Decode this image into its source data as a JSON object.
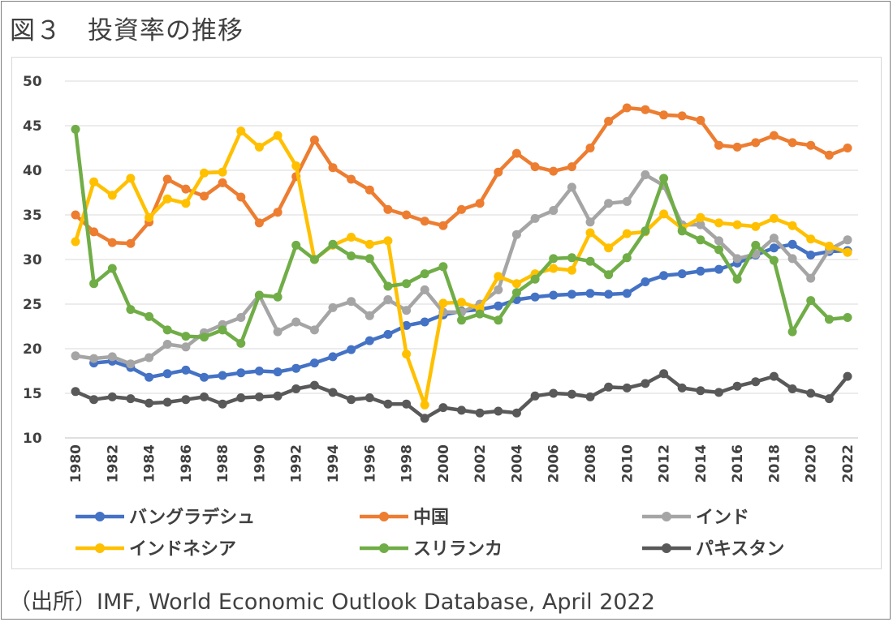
{
  "title": "図３　投資率の推移",
  "source": "（出所）IMF, World Economic Outlook Database, April 2022",
  "chart_data": {
    "type": "line",
    "ylim": [
      10,
      50
    ],
    "yticks": [
      "10",
      "15",
      "20",
      "25",
      "30",
      "35",
      "40",
      "45",
      "50"
    ],
    "x": [
      "1980",
      "1981",
      "1982",
      "1983",
      "1984",
      "1985",
      "1986",
      "1987",
      "1988",
      "1989",
      "1990",
      "1991",
      "1992",
      "1993",
      "1994",
      "1995",
      "1996",
      "1997",
      "1998",
      "1999",
      "2000",
      "2001",
      "2002",
      "2003",
      "2004",
      "2005",
      "2006",
      "2007",
      "2008",
      "2009",
      "2010",
      "2011",
      "2012",
      "2013",
      "2014",
      "2015",
      "2016",
      "2017",
      "2018",
      "2019",
      "2020",
      "2021",
      "2022"
    ],
    "xtick_labels": [
      "1980",
      "1982",
      "1984",
      "1986",
      "1988",
      "1990",
      "1992",
      "1994",
      "1996",
      "1998",
      "2000",
      "2002",
      "2004",
      "2006",
      "2008",
      "2010",
      "2012",
      "2014",
      "2016",
      "2018",
      "2020",
      "2022"
    ],
    "grid": true,
    "legend_position": "bottom",
    "series": [
      {
        "name": "バングラデシュ",
        "color": "#4472c4",
        "values": [
          null,
          18.4,
          18.6,
          17.9,
          16.8,
          17.2,
          17.6,
          16.8,
          17.0,
          17.3,
          17.5,
          17.4,
          17.8,
          18.4,
          19.1,
          19.9,
          20.9,
          21.6,
          22.6,
          23.0,
          23.8,
          24.2,
          24.4,
          24.8,
          25.5,
          25.8,
          26.0,
          26.1,
          26.2,
          26.1,
          26.2,
          27.5,
          28.2,
          28.4,
          28.7,
          28.9,
          29.6,
          30.5,
          31.3,
          31.7,
          30.5,
          30.9,
          31.0
        ]
      },
      {
        "name": "中国",
        "color": "#ed7d31",
        "values": [
          35.0,
          33.1,
          31.9,
          31.8,
          34.2,
          39.0,
          37.9,
          37.1,
          38.6,
          37.0,
          34.1,
          35.3,
          39.3,
          43.4,
          40.3,
          39.0,
          37.8,
          35.6,
          35.0,
          34.3,
          33.8,
          35.6,
          36.3,
          39.8,
          41.9,
          40.4,
          39.9,
          40.4,
          42.5,
          45.5,
          47.0,
          46.8,
          46.2,
          46.1,
          45.6,
          42.8,
          42.6,
          43.1,
          43.9,
          43.1,
          42.8,
          41.7,
          42.5
        ]
      },
      {
        "name": "インド",
        "color": "#a5a5a5",
        "values": [
          19.2,
          18.9,
          19.1,
          18.3,
          19.0,
          20.5,
          20.2,
          21.8,
          22.7,
          23.5,
          26.0,
          21.9,
          23.0,
          22.1,
          24.6,
          25.3,
          23.7,
          25.5,
          24.3,
          26.6,
          24.1,
          24.1,
          25.0,
          26.6,
          32.8,
          34.6,
          35.5,
          38.1,
          34.2,
          36.3,
          36.5,
          39.5,
          38.3,
          33.9,
          33.9,
          32.1,
          30.1,
          30.6,
          32.4,
          30.1,
          27.9,
          31.1,
          32.2
        ]
      },
      {
        "name": "インドネシア",
        "color": "#ffc000",
        "values": [
          32.0,
          38.7,
          37.2,
          39.1,
          34.7,
          36.8,
          36.3,
          39.7,
          39.8,
          44.4,
          42.6,
          43.9,
          40.5,
          30.0,
          31.6,
          32.5,
          31.7,
          32.1,
          19.4,
          13.7,
          25.1,
          25.2,
          24.5,
          28.1,
          27.3,
          28.4,
          29.0,
          28.8,
          33.0,
          31.3,
          32.9,
          33.1,
          35.1,
          33.5,
          34.7,
          34.1,
          33.9,
          33.7,
          34.6,
          33.8,
          32.3,
          31.5,
          30.8
        ]
      },
      {
        "name": "スリランカ",
        "color": "#70ad47",
        "values": [
          44.6,
          27.3,
          29.0,
          24.4,
          23.6,
          22.1,
          21.4,
          21.3,
          22.1,
          20.6,
          26.0,
          25.8,
          31.6,
          30.0,
          31.7,
          30.4,
          30.1,
          27.0,
          27.3,
          28.4,
          29.2,
          23.2,
          23.9,
          23.2,
          26.3,
          27.8,
          30.1,
          30.2,
          29.8,
          28.3,
          30.2,
          33.2,
          39.1,
          33.2,
          32.2,
          31.1,
          27.8,
          31.6,
          29.9,
          21.9,
          25.4,
          23.3,
          23.5
        ]
      },
      {
        "name": "パキスタン",
        "color": "#595959",
        "values": [
          15.2,
          14.3,
          14.6,
          14.4,
          13.9,
          14.0,
          14.3,
          14.6,
          13.8,
          14.5,
          14.6,
          14.7,
          15.5,
          15.9,
          15.1,
          14.3,
          14.5,
          13.8,
          13.8,
          12.2,
          13.4,
          13.1,
          12.8,
          13.0,
          12.8,
          14.7,
          15.0,
          14.9,
          14.6,
          15.7,
          15.6,
          16.1,
          17.2,
          15.6,
          15.3,
          15.1,
          15.8,
          16.3,
          16.9,
          15.5,
          15.0,
          14.4,
          16.9
        ]
      }
    ]
  }
}
